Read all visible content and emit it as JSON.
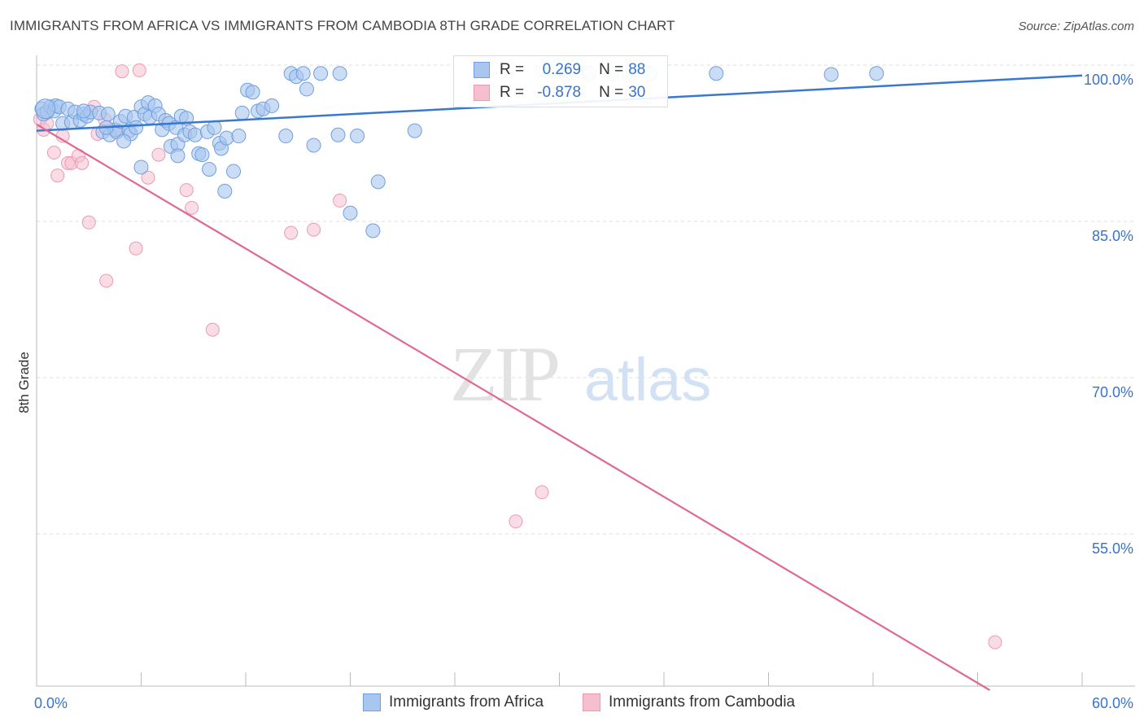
{
  "title": "IMMIGRANTS FROM AFRICA VS IMMIGRANTS FROM CAMBODIA 8TH GRADE CORRELATION CHART",
  "source": "Source: ZipAtlas.com",
  "watermark": {
    "zip": "ZIP",
    "atlas": "atlas"
  },
  "colors": {
    "africa_fill": "#a9c6ef",
    "africa_stroke": "#6f9fe0",
    "africa_line": "#3a78d0",
    "cambodia_fill": "#f6bfd0",
    "cambodia_stroke": "#ec9ab4",
    "cambodia_line": "#e06893",
    "axis_value": "#3a73c8",
    "grid": "#dddddd"
  },
  "legend": {
    "africa": {
      "r_label": "R = ",
      "r_value": "0.269",
      "n_label": "N = ",
      "n_value": "88"
    },
    "cambodia": {
      "r_label": "R = ",
      "r_value": "-0.878",
      "n_label": "N = ",
      "n_value": "30"
    }
  },
  "bottom_legend": {
    "africa": "Immigrants from Africa",
    "cambodia": "Immigrants from Cambodia"
  },
  "chart_data": {
    "type": "scatter",
    "title": "IMMIGRANTS FROM AFRICA VS IMMIGRANTS FROM CAMBODIA 8TH GRADE CORRELATION CHART",
    "ylabel": "8th Grade",
    "xlabel": "",
    "xlim": [
      0,
      60
    ],
    "ylim": [
      40,
      101.5
    ],
    "x_tick_labels": [
      "0.0%",
      "60.0%"
    ],
    "y_ticks": [
      100,
      85,
      70,
      55
    ],
    "y_tick_labels": [
      "100.0%",
      "85.0%",
      "70.0%",
      "55.0%"
    ],
    "grid": true,
    "series": [
      {
        "name": "Immigrants from Africa",
        "r": 0.269,
        "n": 88,
        "trend": {
          "x": [
            0,
            60
          ],
          "y": [
            93.7,
            99.0
          ]
        },
        "points": [
          [
            0.3,
            95.8
          ],
          [
            0.4,
            95.3
          ],
          [
            0.6,
            95.5
          ],
          [
            0.8,
            96.0
          ],
          [
            1.0,
            95.6
          ],
          [
            1.1,
            96.1
          ],
          [
            1.3,
            96.0
          ],
          [
            1.5,
            94.4
          ],
          [
            1.8,
            95.8
          ],
          [
            2.0,
            94.5
          ],
          [
            2.2,
            95.5
          ],
          [
            2.5,
            94.7
          ],
          [
            2.7,
            95.3
          ],
          [
            2.9,
            95.1
          ],
          [
            3.1,
            95.5
          ],
          [
            3.6,
            95.4
          ],
          [
            3.8,
            93.6
          ],
          [
            4.1,
            95.3
          ],
          [
            4.2,
            93.3
          ],
          [
            4.5,
            93.8
          ],
          [
            4.6,
            93.6
          ],
          [
            4.8,
            94.6
          ],
          [
            5.1,
            95.1
          ],
          [
            5.3,
            93.7
          ],
          [
            5.4,
            93.4
          ],
          [
            5.6,
            95.0
          ],
          [
            5.7,
            94.0
          ],
          [
            6.0,
            96.0
          ],
          [
            6.2,
            95.3
          ],
          [
            6.4,
            96.4
          ],
          [
            6.5,
            95.0
          ],
          [
            6.8,
            96.1
          ],
          [
            7.0,
            95.3
          ],
          [
            7.2,
            93.8
          ],
          [
            7.4,
            94.7
          ],
          [
            7.6,
            94.4
          ],
          [
            7.7,
            92.2
          ],
          [
            8.0,
            94.0
          ],
          [
            8.1,
            92.4
          ],
          [
            8.3,
            95.1
          ],
          [
            8.5,
            93.3
          ],
          [
            8.6,
            94.9
          ],
          [
            8.8,
            93.6
          ],
          [
            9.1,
            93.3
          ],
          [
            9.3,
            91.5
          ],
          [
            9.5,
            91.4
          ],
          [
            9.8,
            93.6
          ],
          [
            9.9,
            90.0
          ],
          [
            10.2,
            94.0
          ],
          [
            10.5,
            92.5
          ],
          [
            10.6,
            92.0
          ],
          [
            10.9,
            93.0
          ],
          [
            11.3,
            89.8
          ],
          [
            11.6,
            93.2
          ],
          [
            11.8,
            95.4
          ],
          [
            12.1,
            97.6
          ],
          [
            12.4,
            97.4
          ],
          [
            12.7,
            95.6
          ],
          [
            13.0,
            95.8
          ],
          [
            13.5,
            96.1
          ],
          [
            14.3,
            93.2
          ],
          [
            14.6,
            99.2
          ],
          [
            14.9,
            98.9
          ],
          [
            15.3,
            99.2
          ],
          [
            15.5,
            97.7
          ],
          [
            15.9,
            92.3
          ],
          [
            16.3,
            99.2
          ],
          [
            17.3,
            93.3
          ],
          [
            17.4,
            99.2
          ],
          [
            18.0,
            85.8
          ],
          [
            18.4,
            93.2
          ],
          [
            19.3,
            84.1
          ],
          [
            19.6,
            88.8
          ],
          [
            21.7,
            93.7
          ],
          [
            30.4,
            99.1
          ],
          [
            31.7,
            99.2
          ],
          [
            33.0,
            99.1
          ],
          [
            34.0,
            99.0
          ],
          [
            35.2,
            99.2
          ],
          [
            39.0,
            99.2
          ],
          [
            45.6,
            99.1
          ],
          [
            48.2,
            99.2
          ],
          [
            8.1,
            91.3
          ],
          [
            6.0,
            90.2
          ],
          [
            10.8,
            87.9
          ],
          [
            2.7,
            95.6
          ],
          [
            4.0,
            94.0
          ],
          [
            5.0,
            92.7
          ]
        ]
      },
      {
        "name": "Immigrants from Cambodia",
        "r": -0.878,
        "n": 30,
        "trend": {
          "x": [
            0,
            54.7
          ],
          "y": [
            94.3,
            40.0
          ]
        },
        "points": [
          [
            0.2,
            94.8
          ],
          [
            0.4,
            93.8
          ],
          [
            0.6,
            94.4
          ],
          [
            1.0,
            91.6
          ],
          [
            1.2,
            89.4
          ],
          [
            1.5,
            93.2
          ],
          [
            1.8,
            90.6
          ],
          [
            2.0,
            90.6
          ],
          [
            2.4,
            91.3
          ],
          [
            2.6,
            90.6
          ],
          [
            3.0,
            84.9
          ],
          [
            3.3,
            96.0
          ],
          [
            3.5,
            93.4
          ],
          [
            3.9,
            94.8
          ],
          [
            4.0,
            79.3
          ],
          [
            4.7,
            93.7
          ],
          [
            4.9,
            99.4
          ],
          [
            5.7,
            82.4
          ],
          [
            5.9,
            99.5
          ],
          [
            6.4,
            89.2
          ],
          [
            7.0,
            91.4
          ],
          [
            8.6,
            88.0
          ],
          [
            8.9,
            86.3
          ],
          [
            10.1,
            74.6
          ],
          [
            14.6,
            83.9
          ],
          [
            15.9,
            84.2
          ],
          [
            17.4,
            87.0
          ],
          [
            27.5,
            56.2
          ],
          [
            29.0,
            59.0
          ],
          [
            55.0,
            44.6
          ]
        ]
      }
    ]
  }
}
